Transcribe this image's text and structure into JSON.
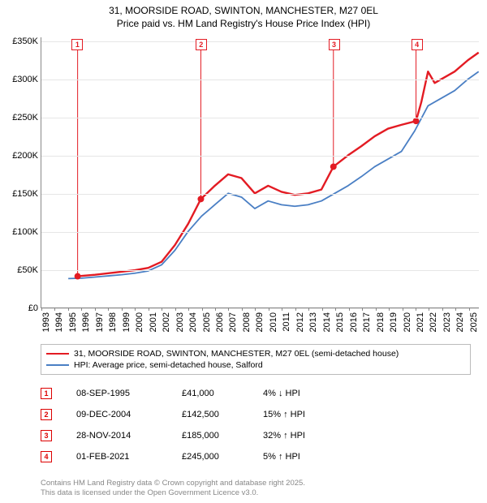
{
  "title_line1": "31, MOORSIDE ROAD, SWINTON, MANCHESTER, M27 0EL",
  "title_line2": "Price paid vs. HM Land Registry's House Price Index (HPI)",
  "chart": {
    "type": "line",
    "x_min": 1993,
    "x_max": 2025.8,
    "y_min": 0,
    "y_max": 355000,
    "yticks": [
      0,
      50000,
      100000,
      150000,
      200000,
      250000,
      300000,
      350000
    ],
    "ytick_labels": [
      "£0",
      "£50K",
      "£100K",
      "£150K",
      "£200K",
      "£250K",
      "£300K",
      "£350K"
    ],
    "xticks": [
      1993,
      1994,
      1995,
      1996,
      1997,
      1998,
      1999,
      2000,
      2001,
      2002,
      2003,
      2004,
      2005,
      2006,
      2007,
      2008,
      2009,
      2010,
      2011,
      2012,
      2013,
      2014,
      2015,
      2016,
      2017,
      2018,
      2019,
      2020,
      2021,
      2022,
      2023,
      2024,
      2025
    ],
    "background_color": "#ffffff",
    "grid_color": "#e6e6e6",
    "series": [
      {
        "name": "HPI: Average price, semi-detached house, Salford",
        "color": "#4a7fc4",
        "width": 1.8,
        "points": [
          [
            1995,
            38000
          ],
          [
            1996,
            38500
          ],
          [
            1997,
            40000
          ],
          [
            1998,
            41500
          ],
          [
            1999,
            43000
          ],
          [
            2000,
            45000
          ],
          [
            2001,
            48000
          ],
          [
            2002,
            56000
          ],
          [
            2003,
            75000
          ],
          [
            2004,
            100000
          ],
          [
            2005,
            120000
          ],
          [
            2006,
            135000
          ],
          [
            2007,
            150000
          ],
          [
            2008,
            145000
          ],
          [
            2009,
            130000
          ],
          [
            2010,
            140000
          ],
          [
            2011,
            135000
          ],
          [
            2012,
            133000
          ],
          [
            2013,
            135000
          ],
          [
            2014,
            140000
          ],
          [
            2015,
            150000
          ],
          [
            2016,
            160000
          ],
          [
            2017,
            172000
          ],
          [
            2018,
            185000
          ],
          [
            2019,
            195000
          ],
          [
            2020,
            205000
          ],
          [
            2021,
            232000
          ],
          [
            2022,
            265000
          ],
          [
            2023,
            275000
          ],
          [
            2024,
            285000
          ],
          [
            2025,
            300000
          ],
          [
            2025.8,
            310000
          ]
        ]
      },
      {
        "name": "31, MOORSIDE ROAD, SWINTON, MANCHESTER, M27 0EL (semi-detached house)",
        "color": "#e31b23",
        "width": 2.4,
        "points": [
          [
            1995.7,
            41000
          ],
          [
            1996,
            41500
          ],
          [
            1997,
            43000
          ],
          [
            1998,
            45000
          ],
          [
            1999,
            47000
          ],
          [
            2000,
            49000
          ],
          [
            2001,
            52000
          ],
          [
            2002,
            60000
          ],
          [
            2003,
            82000
          ],
          [
            2004,
            110000
          ],
          [
            2004.95,
            142500
          ],
          [
            2006,
            160000
          ],
          [
            2007,
            175000
          ],
          [
            2008,
            170000
          ],
          [
            2009,
            150000
          ],
          [
            2010,
            160000
          ],
          [
            2011,
            152000
          ],
          [
            2012,
            148000
          ],
          [
            2013,
            150000
          ],
          [
            2014,
            155000
          ],
          [
            2014.9,
            185000
          ],
          [
            2016,
            200000
          ],
          [
            2017,
            212000
          ],
          [
            2018,
            225000
          ],
          [
            2019,
            235000
          ],
          [
            2020,
            240000
          ],
          [
            2021.1,
            245000
          ],
          [
            2021.5,
            270000
          ],
          [
            2022,
            310000
          ],
          [
            2022.5,
            295000
          ],
          [
            2023,
            300000
          ],
          [
            2024,
            310000
          ],
          [
            2025,
            325000
          ],
          [
            2025.8,
            335000
          ]
        ]
      }
    ],
    "sale_markers": [
      {
        "n": 1,
        "x": 1995.7,
        "y": 41000,
        "color": "#e31b23"
      },
      {
        "n": 2,
        "x": 2004.95,
        "y": 142500,
        "color": "#e31b23"
      },
      {
        "n": 3,
        "x": 2014.9,
        "y": 185000,
        "color": "#e31b23"
      },
      {
        "n": 4,
        "x": 2021.1,
        "y": 245000,
        "color": "#e31b23"
      }
    ]
  },
  "legend": [
    {
      "color": "#e31b23",
      "label": "31, MOORSIDE ROAD, SWINTON, MANCHESTER, M27 0EL (semi-detached house)"
    },
    {
      "color": "#4a7fc4",
      "label": "HPI: Average price, semi-detached house, Salford"
    }
  ],
  "sales": [
    {
      "n": 1,
      "date": "08-SEP-1995",
      "price": "£41,000",
      "delta": "4% ↓ HPI"
    },
    {
      "n": 2,
      "date": "09-DEC-2004",
      "price": "£142,500",
      "delta": "15% ↑ HPI"
    },
    {
      "n": 3,
      "date": "28-NOV-2014",
      "price": "£185,000",
      "delta": "32% ↑ HPI"
    },
    {
      "n": 4,
      "date": "01-FEB-2021",
      "price": "£245,000",
      "delta": "5% ↑ HPI"
    }
  ],
  "footer_line1": "Contains HM Land Registry data © Crown copyright and database right 2025.",
  "footer_line2": "This data is licensed under the Open Government Licence v3.0."
}
